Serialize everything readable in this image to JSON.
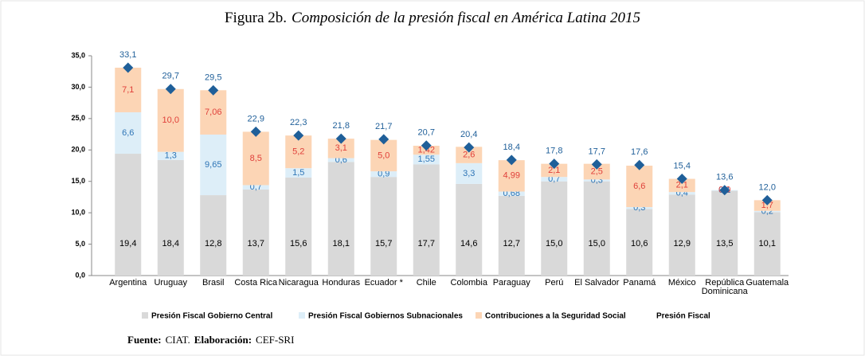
{
  "chart_data": {
    "type": "bar",
    "stacked": true,
    "figure_label": "Figura 2b.",
    "title": "Composición de la presión fiscal en América Latina 2015",
    "categories": [
      "Argentina",
      "Uruguay",
      "Brasil",
      "Costa Rica",
      "Nicaragua",
      "Honduras",
      "Ecuador *",
      "Chile",
      "Colombia",
      "Paraguay",
      "Perú",
      "El Salvador",
      "Panamá",
      "México",
      "República Dominicana",
      "Guatemala"
    ],
    "series": [
      {
        "name": "Presión Fiscal Gobierno Central",
        "color": "#d9d9d9",
        "label_color": "#000000",
        "values": [
          19.4,
          18.4,
          12.8,
          13.7,
          15.6,
          18.1,
          15.7,
          17.7,
          14.6,
          12.7,
          15.0,
          15.0,
          10.6,
          12.9,
          13.5,
          10.1
        ],
        "value_labels": [
          "19,4",
          "18,4",
          "12,8",
          "13,7",
          "15,6",
          "18,1",
          "15,7",
          "17,7",
          "14,6",
          "12,7",
          "15,0",
          "15,0",
          "10,6",
          "12,9",
          "13,5",
          "10,1"
        ]
      },
      {
        "name": "Presión Fiscal Gobiernos Subnacionales",
        "color": "#ddeef8",
        "label_color": "#2e75b6",
        "values": [
          6.6,
          1.3,
          9.65,
          0.7,
          1.5,
          0.6,
          0.9,
          1.55,
          3.3,
          0.68,
          0.7,
          0.3,
          0.3,
          0.4,
          0.1,
          0.2
        ],
        "value_labels": [
          "6,6",
          "1,3",
          "9,65",
          "0,7",
          "1,5",
          "0,6",
          "0,9",
          "1,55",
          "3,3",
          "0,68",
          "0,7",
          "0,3",
          "0,3",
          "0,4",
          "0,1",
          "0,2"
        ]
      },
      {
        "name": "Contribuciones a la Seguridad Social",
        "color": "#fcd5b5",
        "label_color": "#e0403a",
        "values": [
          7.1,
          10.0,
          7.06,
          8.5,
          5.2,
          3.1,
          5.0,
          1.42,
          2.6,
          4.99,
          2.1,
          2.5,
          6.6,
          2.1,
          0.0,
          1.7
        ],
        "value_labels": [
          "7,1",
          "10,0",
          "7,06",
          "8,5",
          "5,2",
          "3,1",
          "5,0",
          "1,42",
          "2,6",
          "4,99",
          "2,1",
          "2,5",
          "6,6",
          "2,1",
          "0,0",
          "1,7"
        ]
      },
      {
        "name": "Presión Fiscal",
        "type": "scatter",
        "marker": "diamond",
        "color": "#1f5f99",
        "label_color": "#1f5f99",
        "values": [
          33.1,
          29.7,
          29.5,
          22.9,
          22.3,
          21.8,
          21.7,
          20.7,
          20.4,
          18.4,
          17.8,
          17.7,
          17.6,
          15.4,
          13.6,
          12.0
        ],
        "value_labels": [
          "33,1",
          "29,7",
          "29,5",
          "22,9",
          "22,3",
          "21,8",
          "21,7",
          "20,7",
          "20,4",
          "18,4",
          "17,8",
          "17,7",
          "17,6",
          "15,4",
          "13,6",
          "12,0"
        ]
      }
    ],
    "ylim": [
      0,
      35
    ],
    "yticks": [
      {
        "value": 0,
        "label": "0,0"
      },
      {
        "value": 5,
        "label": "5,0"
      },
      {
        "value": 10,
        "label": "10,0"
      },
      {
        "value": 15,
        "label": "15,0"
      },
      {
        "value": 20,
        "label": "20,0"
      },
      {
        "value": 25,
        "label": "25,0"
      },
      {
        "value": 30,
        "label": "30,0"
      },
      {
        "value": 35,
        "label": "35,0"
      }
    ],
    "legend": "bottom",
    "source_label": "Fuente:",
    "source": "CIAT.",
    "author_label": "Elaboración:",
    "author": "CEF-SRI"
  }
}
